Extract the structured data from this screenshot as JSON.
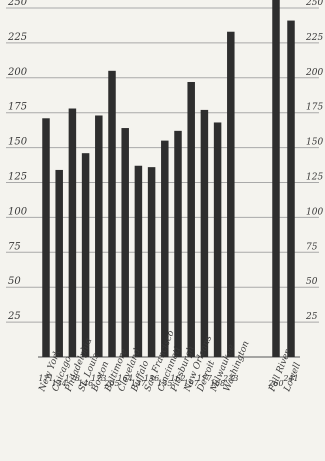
{
  "chart_data": {
    "type": "bar",
    "title": "",
    "xlabel": "",
    "ylabel": "",
    "ylim": [
      0,
      250
    ],
    "yticks": [
      25,
      50,
      75,
      100,
      125,
      150,
      175,
      200,
      225,
      250
    ],
    "ytick_labels": [
      "25",
      "50",
      "75",
      "100",
      "125",
      "150",
      "175",
      "200",
      "225",
      "250"
    ],
    "grid": true,
    "categories": [
      "New York",
      "Chicago",
      "Philadelphia",
      "St. Louis",
      "Boston",
      "Baltimore",
      "Cleveland",
      "Buffalo",
      "San Francisco",
      "Cincinnati",
      "Pittsburgh",
      "New Orleans",
      "Detroit",
      "Milwaukee",
      "Washington",
      "Fall River",
      "Lowell"
    ],
    "values": [
      171,
      134,
      178,
      146,
      173,
      205,
      164,
      137,
      136,
      155,
      162,
      197,
      177,
      168,
      233,
      260,
      241
    ],
    "value_labels": [
      "171",
      "134",
      "178",
      "146",
      "173",
      "205",
      "164",
      "137",
      "136",
      "155",
      "162",
      "197",
      "177",
      "168",
      "233",
      "260",
      "241"
    ],
    "group_break_after_index": 14,
    "bar_color": "#2e2e2e",
    "grid_color": "#a9a9a9",
    "background": "#f4f3ee"
  }
}
